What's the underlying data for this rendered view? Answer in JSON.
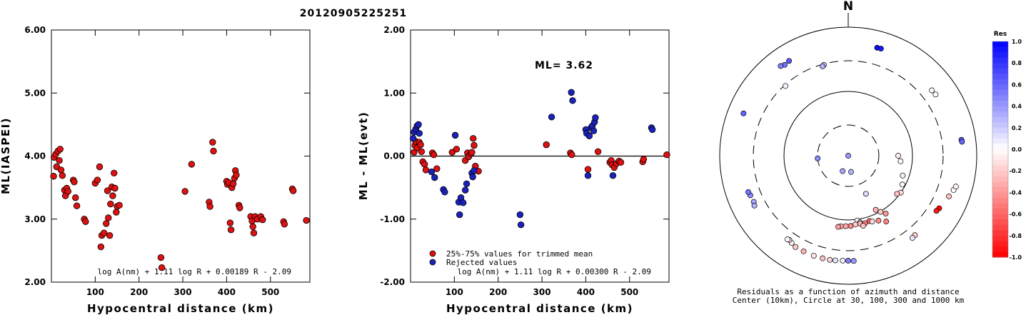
{
  "page_title": "20120905225251",
  "chart_data": [
    {
      "id": "left",
      "type": "scatter",
      "ylabel": "ML(IASPEI)",
      "xlabel": "Hypocentral distance (km)",
      "xlim": [
        0,
        590
      ],
      "ylim": [
        2.0,
        6.0
      ],
      "xticks": [
        100,
        200,
        300,
        400,
        500
      ],
      "yticks": [
        "2.00",
        "3.00",
        "4.00",
        "5.00",
        "6.00"
      ],
      "formula": "log A(nm) + 1.11 log R + 0.00189 R - 2.09",
      "series": [
        {
          "color": "#dd1111",
          "points": [
            [
              5,
              3.68
            ],
            [
              6,
              3.98
            ],
            [
              10,
              4.03
            ],
            [
              12,
              3.83
            ],
            [
              15,
              4.08
            ],
            [
              18,
              3.93
            ],
            [
              20,
              4.11
            ],
            [
              22,
              3.78
            ],
            [
              25,
              3.69
            ],
            [
              30,
              3.46
            ],
            [
              32,
              3.37
            ],
            [
              35,
              3.49
            ],
            [
              38,
              3.44
            ],
            [
              50,
              3.62
            ],
            [
              52,
              3.59
            ],
            [
              55,
              3.34
            ],
            [
              58,
              3.21
            ],
            [
              75,
              3.0
            ],
            [
              78,
              2.96
            ],
            [
              100,
              3.57
            ],
            [
              105,
              3.62
            ],
            [
              110,
              3.83
            ],
            [
              113,
              2.56
            ],
            [
              115,
              2.74
            ],
            [
              120,
              2.78
            ],
            [
              125,
              2.93
            ],
            [
              128,
              3.45
            ],
            [
              130,
              3.02
            ],
            [
              133,
              2.74
            ],
            [
              135,
              3.24
            ],
            [
              138,
              3.51
            ],
            [
              140,
              3.37
            ],
            [
              143,
              3.73
            ],
            [
              145,
              3.49
            ],
            [
              148,
              3.11
            ],
            [
              150,
              3.2
            ],
            [
              155,
              3.22
            ],
            [
              250,
              2.39
            ],
            [
              252,
              2.23
            ],
            [
              320,
              3.87
            ],
            [
              305,
              3.44
            ],
            [
              360,
              3.27
            ],
            [
              362,
              3.2
            ],
            [
              368,
              4.22
            ],
            [
              370,
              4.08
            ],
            [
              400,
              3.6
            ],
            [
              402,
              3.55
            ],
            [
              405,
              3.58
            ],
            [
              408,
              2.94
            ],
            [
              410,
              2.83
            ],
            [
              412,
              3.5
            ],
            [
              415,
              3.56
            ],
            [
              418,
              3.65
            ],
            [
              420,
              3.77
            ],
            [
              422,
              3.7
            ],
            [
              428,
              3.22
            ],
            [
              430,
              3.18
            ],
            [
              455,
              3.04
            ],
            [
              458,
              2.97
            ],
            [
              460,
              2.88
            ],
            [
              462,
              2.78
            ],
            [
              465,
              3.04
            ],
            [
              470,
              3.0
            ],
            [
              478,
              3.04
            ],
            [
              482,
              2.99
            ],
            [
              530,
              2.96
            ],
            [
              532,
              2.92
            ],
            [
              550,
              3.48
            ],
            [
              552,
              3.45
            ],
            [
              582,
              2.98
            ]
          ]
        }
      ]
    },
    {
      "id": "middle",
      "type": "scatter",
      "ylabel": "ML - ML(evt)",
      "xlabel": "Hypocentral distance (km)",
      "xlim": [
        0,
        590
      ],
      "ylim": [
        -2.0,
        2.0
      ],
      "xticks": [
        100,
        200,
        300,
        400,
        500
      ],
      "yticks": [
        "-2.00",
        "-1.00",
        "0.00",
        "1.00",
        "2.00"
      ],
      "annotation": "ML= 3.62",
      "formula": "log A(nm) + 1.11 log R + 0.00300 R - 2.09",
      "legend": [
        {
          "label": "25%-75% values for trimmed mean",
          "color": "#dd1111"
        },
        {
          "label": "Rejected values",
          "color": "#1a22bb"
        }
      ],
      "series": [
        {
          "name": "25%-75% values for trimmed mean",
          "color": "#dd1111",
          "points": [
            [
              8,
              0.06
            ],
            [
              10,
              0.17
            ],
            [
              12,
              0.23
            ],
            [
              15,
              0.13
            ],
            [
              20,
              0.22
            ],
            [
              23,
              0.18
            ],
            [
              25,
              0.07
            ],
            [
              28,
              -0.09
            ],
            [
              32,
              -0.13
            ],
            [
              35,
              -0.22
            ],
            [
              50,
              0.05
            ],
            [
              53,
              0.02
            ],
            [
              60,
              -0.2
            ],
            [
              95,
              0.06
            ],
            [
              105,
              0.11
            ],
            [
              125,
              -0.07
            ],
            [
              130,
              0.05
            ],
            [
              133,
              -0.01
            ],
            [
              138,
              0.04
            ],
            [
              140,
              0.06
            ],
            [
              143,
              0.28
            ],
            [
              145,
              0.17
            ],
            [
              148,
              -0.16
            ],
            [
              155,
              -0.24
            ],
            [
              310,
              0.18
            ],
            [
              365,
              0.05
            ],
            [
              368,
              0.02
            ],
            [
              405,
              -0.21
            ],
            [
              428,
              0.07
            ],
            [
              455,
              -0.1
            ],
            [
              458,
              -0.07
            ],
            [
              460,
              -0.14
            ],
            [
              465,
              -0.18
            ],
            [
              470,
              -0.12
            ],
            [
              476,
              -0.08
            ],
            [
              480,
              -0.1
            ],
            [
              530,
              -0.09
            ],
            [
              532,
              -0.05
            ],
            [
              585,
              0.02
            ]
          ]
        },
        {
          "name": "Rejected values",
          "color": "#1a22bb",
          "points": [
            [
              6,
              0.28
            ],
            [
              8,
              0.38
            ],
            [
              12,
              0.43
            ],
            [
              15,
              0.48
            ],
            [
              18,
              0.5
            ],
            [
              20,
              0.36
            ],
            [
              48,
              -0.25
            ],
            [
              55,
              -0.34
            ],
            [
              75,
              -0.53
            ],
            [
              78,
              -0.57
            ],
            [
              102,
              0.33
            ],
            [
              110,
              -0.73
            ],
            [
              112,
              -0.93
            ],
            [
              115,
              -0.66
            ],
            [
              120,
              -0.74
            ],
            [
              125,
              -0.54
            ],
            [
              128,
              -0.44
            ],
            [
              140,
              -0.27
            ],
            [
              142,
              -0.33
            ],
            [
              145,
              -0.23
            ],
            [
              250,
              -0.93
            ],
            [
              252,
              -1.09
            ],
            [
              322,
              0.62
            ],
            [
              367,
              1.01
            ],
            [
              370,
              0.88
            ],
            [
              400,
              0.42
            ],
            [
              402,
              0.36
            ],
            [
              405,
              -0.31
            ],
            [
              408,
              0.32
            ],
            [
              412,
              0.45
            ],
            [
              415,
              0.48
            ],
            [
              418,
              0.4
            ],
            [
              420,
              0.54
            ],
            [
              422,
              0.61
            ],
            [
              462,
              -0.31
            ],
            [
              550,
              0.45
            ],
            [
              552,
              0.42
            ]
          ]
        }
      ]
    },
    {
      "id": "polar",
      "type": "scatter",
      "north_label": "N",
      "caption_line1": "Residuals as a function of azimuth and distance",
      "caption_line2": "Center (10km), Circle at 30, 100, 300 and 1000 km",
      "rings_km": [
        30,
        100,
        300,
        1000
      ],
      "colorbar": {
        "title": "Res",
        "ticks": [
          "1.0",
          "0.8",
          "0.6",
          "0.4",
          "0.2",
          "0.0",
          "-0.2",
          "-0.4",
          "-0.6",
          "-0.8",
          "-1.0"
        ],
        "max_color": "#0000ff",
        "mid_color": "#ffffff",
        "min_color": "#ff0000"
      },
      "points": [
        {
          "az": 15,
          "dist": 548,
          "res": 0.95
        },
        {
          "az": 17,
          "dist": 552,
          "res": 0.9
        },
        {
          "az": 325,
          "dist": 531,
          "res": 0.55
        },
        {
          "az": 328,
          "dist": 548,
          "res": 0.65
        },
        {
          "az": 323,
          "dist": 558,
          "res": 0.5
        },
        {
          "az": 345,
          "dist": 290,
          "res": 0.2
        },
        {
          "az": 344,
          "dist": 280,
          "res": 0.3
        },
        {
          "az": 318,
          "dist": 288,
          "res": 0.05
        },
        {
          "az": 292,
          "dist": 572,
          "res": 0.6
        },
        {
          "az": 52,
          "dist": 448,
          "res": 0.02
        },
        {
          "az": 55,
          "dist": 457,
          "res": 0.0
        },
        {
          "az": 82,
          "dist": 602,
          "res": 0.65
        },
        {
          "az": 83,
          "dist": 608,
          "res": 0.6
        },
        {
          "az": 0,
          "dist": 4,
          "res": 0.4
        },
        {
          "az": 265,
          "dist": 30,
          "res": 0.45
        },
        {
          "az": 200,
          "dist": 18,
          "res": 0.35
        },
        {
          "az": 170,
          "dist": 18,
          "res": 0.3
        },
        {
          "az": 155,
          "dist": 45,
          "res": 0.15
        },
        {
          "az": 90,
          "dist": 60,
          "res": -0.05
        },
        {
          "az": 96,
          "dist": 66,
          "res": -0.02
        },
        {
          "az": 110,
          "dist": 80,
          "res": 0.05
        },
        {
          "az": 118,
          "dist": 90,
          "res": 0.02
        },
        {
          "az": 125,
          "dist": 100,
          "res": -0.15
        },
        {
          "az": 128,
          "dist": 92,
          "res": -0.25
        },
        {
          "az": 153,
          "dist": 88,
          "res": -0.3
        },
        {
          "az": 150,
          "dist": 102,
          "res": -0.2
        },
        {
          "az": 147,
          "dist": 118,
          "res": -0.4
        },
        {
          "az": 155,
          "dist": 130,
          "res": -0.45
        },
        {
          "az": 150,
          "dist": 152,
          "res": -0.5
        },
        {
          "az": 248,
          "dist": 440,
          "res": 0.45
        },
        {
          "az": 250,
          "dist": 452,
          "res": 0.55
        },
        {
          "az": 244,
          "dist": 432,
          "res": 0.35
        },
        {
          "az": 242,
          "dist": 450,
          "res": 0.3
        },
        {
          "az": 172,
          "dist": 104,
          "res": -0.05
        },
        {
          "az": 170,
          "dist": 113,
          "res": 0.0
        },
        {
          "az": 174,
          "dist": 119,
          "res": -0.2
        },
        {
          "az": 170,
          "dist": 118,
          "res": -0.3
        },
        {
          "az": 178,
          "dist": 124,
          "res": -0.45
        },
        {
          "az": 182,
          "dist": 125,
          "res": -0.35
        },
        {
          "az": 186,
          "dist": 127,
          "res": -0.3
        },
        {
          "az": 188,
          "dist": 131,
          "res": -0.4
        },
        {
          "az": 166,
          "dist": 121,
          "res": -0.5
        },
        {
          "az": 162,
          "dist": 117,
          "res": -0.6
        },
        {
          "az": 168,
          "dist": 130,
          "res": -0.25
        },
        {
          "az": 160,
          "dist": 123,
          "res": -0.15
        },
        {
          "az": 120,
          "dist": 431,
          "res": -1.0
        },
        {
          "az": 122,
          "dist": 416,
          "res": -0.9
        },
        {
          "az": 108,
          "dist": 530,
          "res": 0.0
        },
        {
          "az": 106,
          "dist": 553,
          "res": -0.05
        },
        {
          "az": 112,
          "dist": 490,
          "res": -0.25
        },
        {
          "az": 140,
          "dist": 410,
          "res": -0.2
        },
        {
          "az": 142,
          "dist": 420,
          "res": 0.1
        },
        {
          "az": 177,
          "dist": 436,
          "res": 0.4
        },
        {
          "az": 180,
          "dist": 430,
          "res": 0.5
        },
        {
          "az": 183,
          "dist": 430,
          "res": 0.05
        },
        {
          "az": 187,
          "dist": 437,
          "res": 0.1
        },
        {
          "az": 190,
          "dist": 441,
          "res": -0.15
        },
        {
          "az": 194,
          "dist": 441,
          "res": -0.25
        },
        {
          "az": 199,
          "dist": 442,
          "res": -0.1
        },
        {
          "az": 205,
          "dist": 438,
          "res": -0.3
        },
        {
          "az": 210,
          "dist": 436,
          "res": -0.2
        },
        {
          "az": 213,
          "dist": 414,
          "res": -0.05
        },
        {
          "az": 215,
          "dist": 396,
          "res": -0.15
        },
        {
          "az": 216,
          "dist": 406,
          "res": 0.02
        }
      ]
    }
  ]
}
